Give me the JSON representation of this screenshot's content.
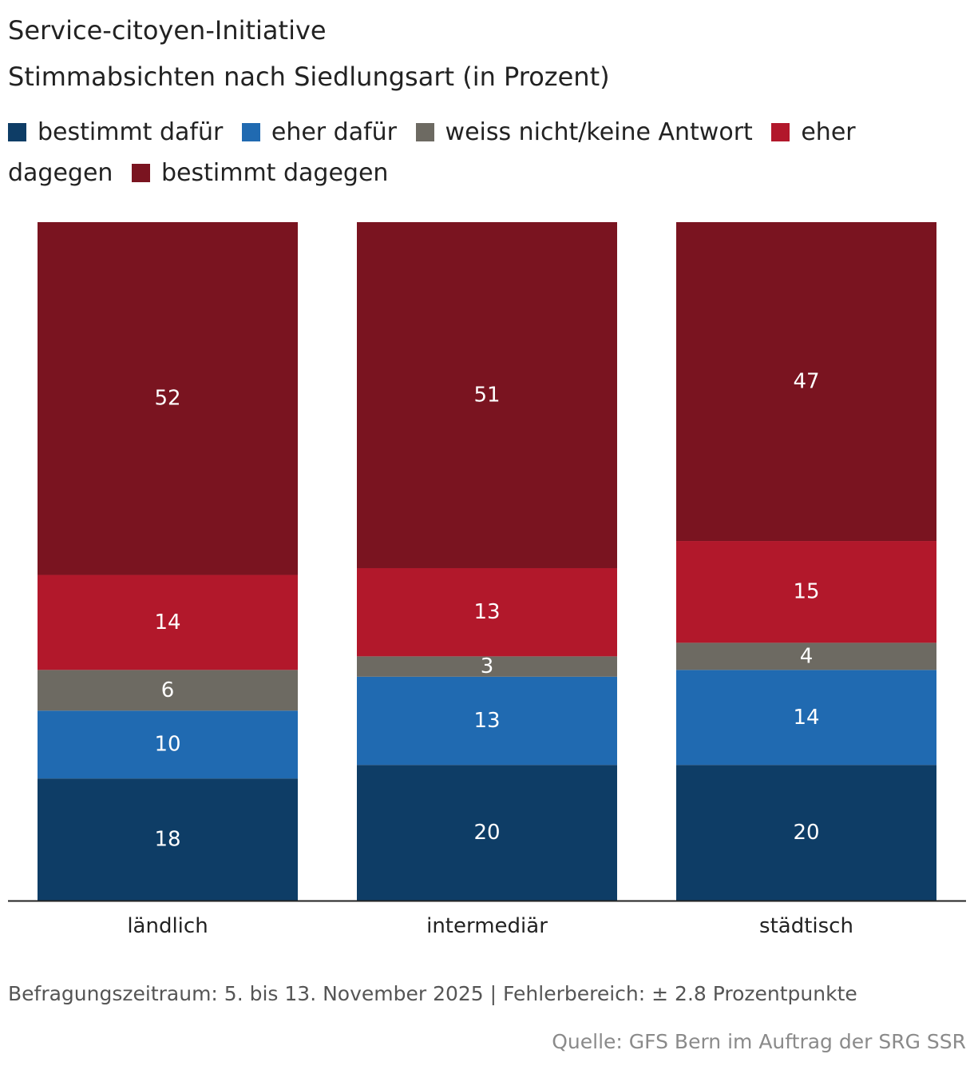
{
  "chart_data": {
    "type": "bar",
    "stacked": true,
    "title": "Service-citoyen-Initiative",
    "subtitle": "Stimmabsichten nach Siedlungsart (in Prozent)",
    "categories": [
      "ländlich",
      "intermediär",
      "städtisch"
    ],
    "series": [
      {
        "name": "bestimmt dafür",
        "color": "#0e3d66",
        "values": [
          18,
          20,
          20
        ]
      },
      {
        "name": "eher dafür",
        "color": "#206ab1",
        "values": [
          10,
          13,
          14
        ]
      },
      {
        "name": "weiss nicht/keine Antwort",
        "color": "#6d6a62",
        "values": [
          6,
          3,
          4
        ]
      },
      {
        "name": "eher dagegen",
        "color": "#b2182b",
        "values": [
          14,
          13,
          15
        ]
      },
      {
        "name": "bestimmt dagegen",
        "color": "#7a1420",
        "values": [
          52,
          51,
          47
        ]
      }
    ],
    "ylim": [
      0,
      100
    ],
    "legend_position": "top",
    "grid": false,
    "footnote": "Befragungszeitraum: 5. bis 13. November 2025 | Fehlerbereich: ± 2.8 Prozentpunkte",
    "source": "Quelle: GFS Bern im Auftrag der SRG SSR"
  }
}
